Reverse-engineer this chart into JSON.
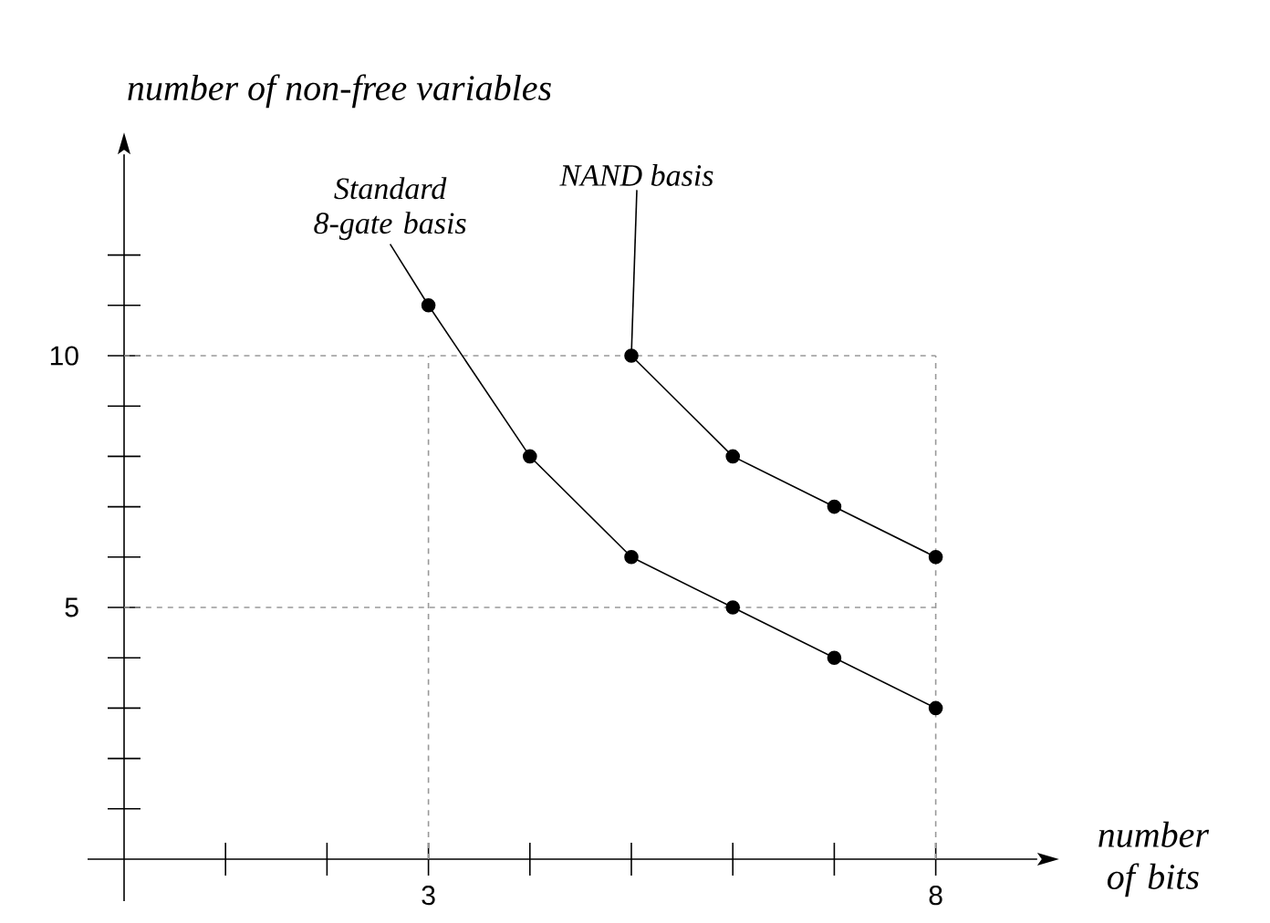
{
  "chart_data": {
    "type": "line",
    "xlabel": "number of bits",
    "ylabel": "number of non-free variables",
    "xlim": [
      0,
      9
    ],
    "ylim": [
      0,
      14
    ],
    "xticks": [
      {
        "value": 1,
        "label": null
      },
      {
        "value": 2,
        "label": null
      },
      3,
      {
        "value": 4,
        "label": null
      },
      {
        "value": 5,
        "label": null
      },
      {
        "value": 6,
        "label": null
      },
      {
        "value": 7,
        "label": null
      },
      8
    ],
    "yticks": [
      {
        "value": 1,
        "label": null
      },
      {
        "value": 2,
        "label": null
      },
      {
        "value": 3,
        "label": null
      },
      {
        "value": 4,
        "label": null
      },
      5,
      {
        "value": 6,
        "label": null
      },
      {
        "value": 7,
        "label": null
      },
      {
        "value": 8,
        "label": null
      },
      {
        "value": 9,
        "label": null
      },
      10,
      {
        "value": 11,
        "label": null
      },
      {
        "value": 12,
        "label": null
      }
    ],
    "series": [
      {
        "x": [
          3,
          4,
          5,
          6,
          7,
          8
        ],
        "values": [
          11,
          8,
          6,
          5,
          4,
          3
        ],
        "color": "#000000"
      },
      {
        "x": [
          5,
          6,
          7,
          8
        ],
        "values": [
          10,
          8,
          7,
          6
        ],
        "color": "#000000"
      }
    ],
    "marker": "circle",
    "line_style": "solid",
    "ref_lines": [
      {
        "axis": "y",
        "value": 10,
        "color": "#999999",
        "line_style": "dashed"
      },
      {
        "axis": "y",
        "value": 5,
        "color": "#999999",
        "line_style": "dashed"
      },
      {
        "axis": "x",
        "value": 3,
        "color": "#999999",
        "line_style": "dashed"
      },
      {
        "axis": "x",
        "value": 8,
        "color": "#999999",
        "line_style": "dashed"
      }
    ],
    "annotations": [
      {
        "text": "Standard 8-gate basis",
        "x": 3,
        "y": 11
      },
      {
        "text": "NAND basis",
        "x": 5,
        "y": 10
      }
    ]
  }
}
